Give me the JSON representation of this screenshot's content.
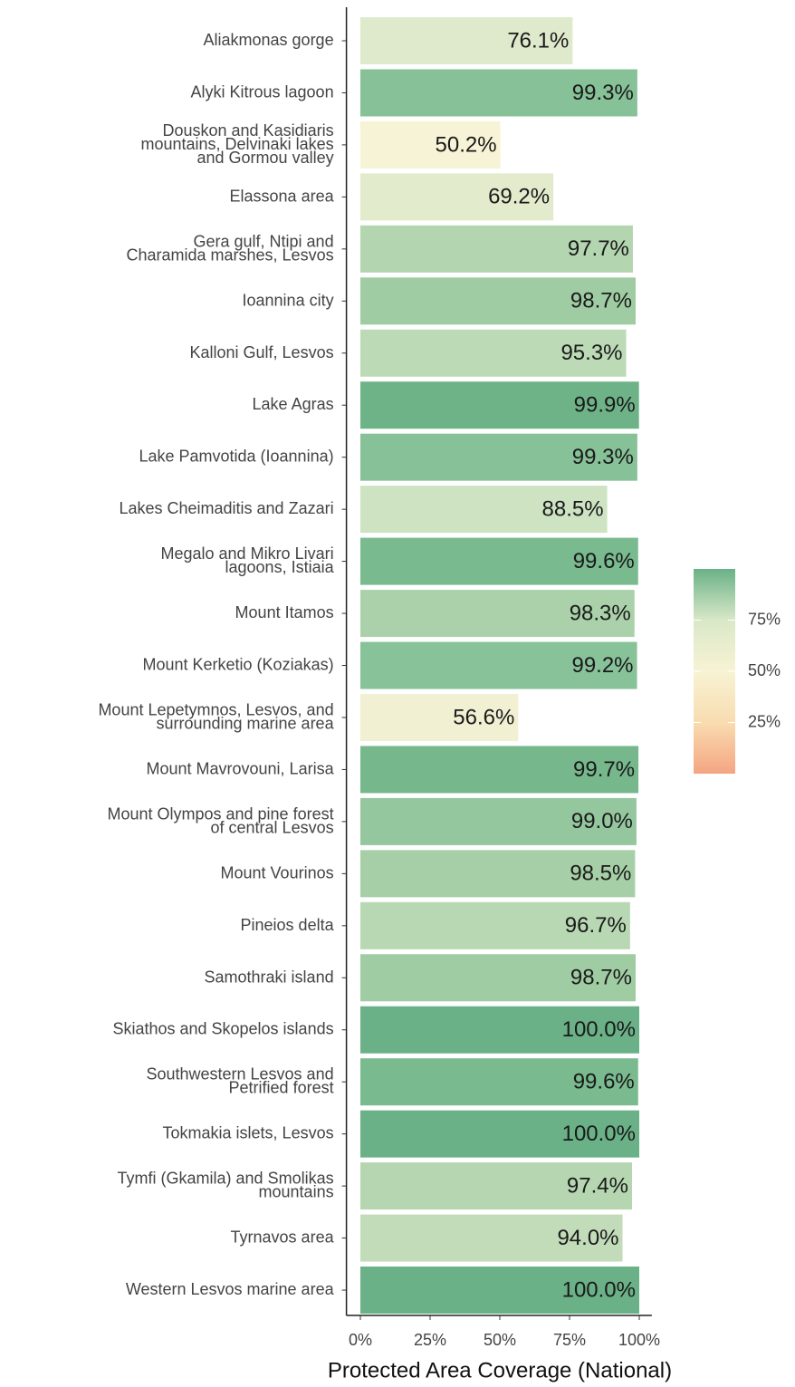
{
  "chart_data": {
    "type": "barh",
    "x_label": "Protected Area Coverage (National)",
    "categories": [
      "Aliakmonas gorge",
      "Alyki Kitrous lagoon",
      "Douskon and Kasidiaris\nmountains, Delvinaki lakes\nand Gormou valley",
      "Elassona area",
      "Gera gulf, Ntipi and\nCharamida marshes, Lesvos",
      "Ioannina city",
      "Kalloni Gulf, Lesvos",
      "Lake Agras",
      "Lake Pamvotida (Ioannina)",
      "Lakes Cheimaditis and Zazari",
      "Megalo and Mikro Livari\nlagoons, Istiaia",
      "Mount Itamos",
      "Mount Kerketio (Koziakas)",
      "Mount Lepetymnos, Lesvos, and\nsurrounding marine area",
      "Mount Mavrovouni, Larisa",
      "Mount Olympos and pine forest\nof central Lesvos",
      "Mount Vourinos",
      "Pineios delta",
      "Samothraki island",
      "Skiathos and Skopelos islands",
      "Southwestern Lesvos and\nPetrified forest",
      "Tokmakia islets, Lesvos",
      "Tymfi (Gkamila) and Smolikas\nmountains",
      "Tyrnavos area",
      "Western Lesvos marine area"
    ],
    "values": [
      76.1,
      99.3,
      50.2,
      69.2,
      97.7,
      98.7,
      95.3,
      99.9,
      99.3,
      88.5,
      99.6,
      98.3,
      99.2,
      56.6,
      99.7,
      99.0,
      98.5,
      96.7,
      98.7,
      100.0,
      99.6,
      100.0,
      97.4,
      94.0,
      100.0
    ],
    "value_labels": [
      "76.1%",
      "99.3%",
      "50.2%",
      "69.2%",
      "97.7%",
      "98.7%",
      "95.3%",
      "99.9%",
      "99.3%",
      "88.5%",
      "99.6%",
      "98.3%",
      "99.2%",
      "56.6%",
      "99.7%",
      "99.0%",
      "98.5%",
      "96.7%",
      "98.7%",
      "100.0%",
      "99.6%",
      "100.0%",
      "97.4%",
      "94.0%",
      "100.0%"
    ],
    "colors": [
      "#dfe9cb",
      "#86c197",
      "#f7f3d6",
      "#e3ebcd",
      "#b3d5b0",
      "#a0cca3",
      "#bcdab6",
      "#6eb387",
      "#86c197",
      "#cde3c2",
      "#79ba8e",
      "#abd1aa",
      "#88c299",
      "#f1f0d2",
      "#76b88c",
      "#95c79e",
      "#a6cfa7",
      "#b8d8b3",
      "#a0cca3",
      "#6ab187",
      "#79ba8e",
      "#6ab187",
      "#b5d6b1",
      "#c2dcb9",
      "#6ab187"
    ],
    "xlim": [
      -5,
      104.5
    ],
    "xticks": [
      {
        "value": 0,
        "label": "0%"
      },
      {
        "value": 25,
        "label": "25%"
      },
      {
        "value": 50,
        "label": "50%"
      },
      {
        "value": 75,
        "label": "75%"
      },
      {
        "value": 100,
        "label": "100%"
      }
    ],
    "colorbar": {
      "colors": [
        "#f4a582",
        "#f9dcb0",
        "#f7f3d4",
        "#d9e8c8",
        "#6ab187"
      ],
      "lim": [
        0,
        100
      ],
      "ticks": [
        {
          "value": 25,
          "label": "25%"
        },
        {
          "value": 50,
          "label": "50%"
        },
        {
          "value": 75,
          "label": "75%"
        }
      ]
    }
  }
}
